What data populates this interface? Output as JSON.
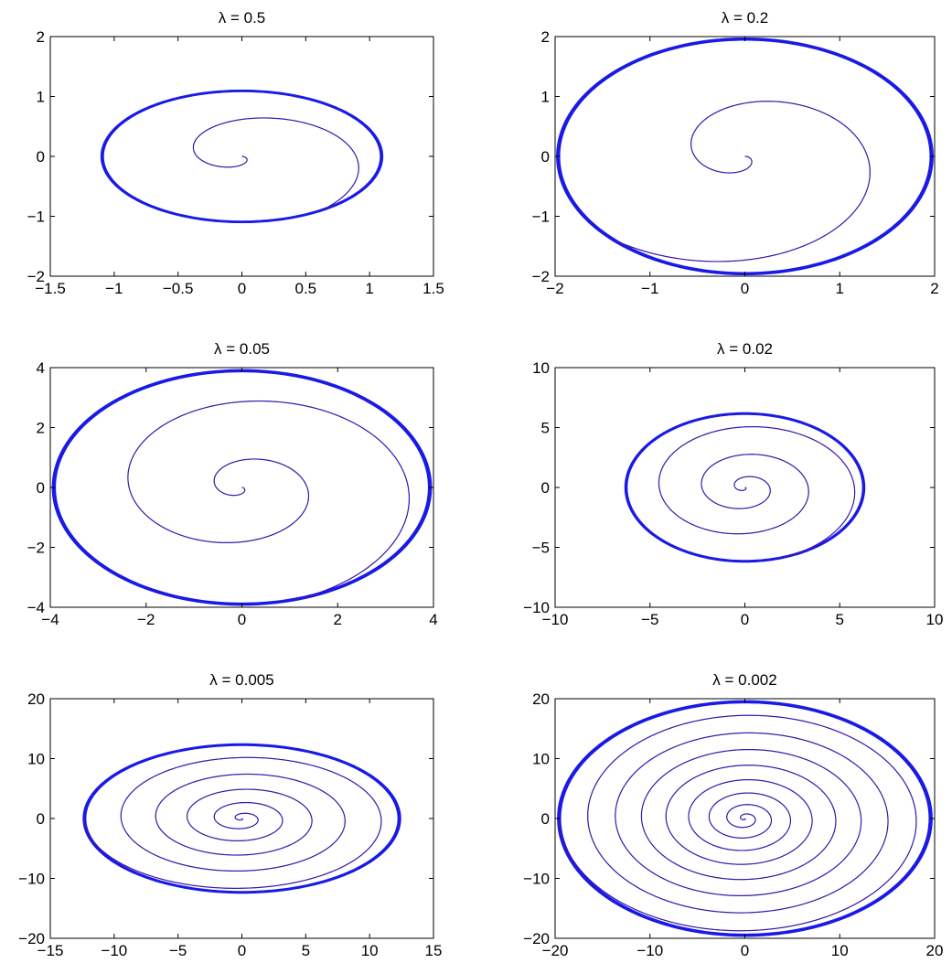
{
  "colors": {
    "spiral": "#1a1acc",
    "overlay": "#cc1a1a",
    "limit_cycle": "#1a1ae6",
    "axes": "#000000",
    "background": "#ffffff"
  },
  "chart_data": [
    {
      "type": "line",
      "title": "λ = 0.5",
      "xlim": [
        -1.5,
        1.5
      ],
      "ylim": [
        -2,
        2
      ],
      "xticks": [
        -1.5,
        -1,
        -0.5,
        0,
        0.5,
        1,
        1.5
      ],
      "yticks": [
        -2,
        -1,
        0,
        1,
        2
      ],
      "xtick_labels": [
        "−1.5",
        "−1",
        "−0.5",
        "0",
        "0.5",
        "1",
        "1.5"
      ],
      "ytick_labels": [
        "−2",
        "−1",
        "0",
        "1",
        "2"
      ],
      "grid": false,
      "series": [
        {
          "role": "trajectory",
          "spiral": {
            "a_end": 1.08,
            "b_end": 1.1,
            "turns": 1.15,
            "start_angle": 0.0
          }
        },
        {
          "role": "limit-cycle",
          "ellipse": {
            "a": 1.1,
            "b": 1.1
          }
        }
      ]
    },
    {
      "type": "line",
      "title": "λ = 0.2",
      "xlim": [
        -2,
        2
      ],
      "ylim": [
        -2,
        2
      ],
      "xticks": [
        -2,
        -1,
        0,
        1,
        2
      ],
      "yticks": [
        -2,
        -1,
        0,
        1,
        2
      ],
      "xtick_labels": [
        "−2",
        "−1",
        "0",
        "1",
        "2"
      ],
      "ytick_labels": [
        "−2",
        "−1",
        "0",
        "1",
        "2"
      ],
      "grid": false,
      "series": [
        {
          "role": "trajectory",
          "spiral": {
            "a_end": 1.95,
            "b_end": 1.95,
            "turns": 1.4,
            "start_angle": 0.2
          }
        },
        {
          "role": "limit-cycle",
          "ellipse": {
            "a": 1.98,
            "b": 1.97
          }
        }
      ]
    },
    {
      "type": "line",
      "title": "λ = 0.05",
      "xlim": [
        -4,
        4
      ],
      "ylim": [
        -4,
        4
      ],
      "xticks": [
        -4,
        -2,
        0,
        2,
        4
      ],
      "yticks": [
        -4,
        -2,
        0,
        2,
        4
      ],
      "xtick_labels": [
        "−4",
        "−2",
        "0",
        "2",
        "4"
      ],
      "ytick_labels": [
        "−4",
        "−2",
        "0",
        "2",
        "4"
      ],
      "grid": false,
      "series": [
        {
          "role": "trajectory",
          "spiral": {
            "a_end": 3.95,
            "b_end": 3.9,
            "turns": 2.2,
            "start_angle": 0.0
          }
        },
        {
          "role": "limit-cycle",
          "ellipse": {
            "a": 3.95,
            "b": 3.92
          }
        }
      ]
    },
    {
      "type": "line",
      "title": "λ = 0.02",
      "xlim": [
        -10,
        10
      ],
      "ylim": [
        -10,
        10
      ],
      "xticks": [
        -10,
        -5,
        0,
        5,
        10
      ],
      "yticks": [
        -10,
        -5,
        0,
        5,
        10
      ],
      "xtick_labels": [
        "−10",
        "−5",
        "0",
        "5",
        "10"
      ],
      "ytick_labels": [
        "−10",
        "−5",
        "0",
        "5",
        "10"
      ],
      "grid": false,
      "series": [
        {
          "role": "trajectory",
          "spiral": {
            "a_end": 6.3,
            "b_end": 6.2,
            "turns": 3.2,
            "start_angle": 0.0
          }
        },
        {
          "role": "limit-cycle",
          "ellipse": {
            "a": 6.3,
            "b": 6.2
          }
        }
      ]
    },
    {
      "type": "line",
      "title": "λ = 0.005",
      "xlim": [
        -15,
        15
      ],
      "ylim": [
        -20,
        20
      ],
      "xticks": [
        -15,
        -10,
        -5,
        0,
        5,
        10,
        15
      ],
      "yticks": [
        -20,
        -10,
        0,
        10,
        20
      ],
      "xtick_labels": [
        "−15",
        "−10",
        "−5",
        "0",
        "5",
        "10",
        "15"
      ],
      "ytick_labels": [
        "−20",
        "−10",
        "0",
        "10",
        "20"
      ],
      "grid": false,
      "series": [
        {
          "role": "trajectory",
          "spiral": {
            "a_end": 12.4,
            "b_end": 12.4,
            "turns": 5.5,
            "start_angle": 0.0
          }
        },
        {
          "role": "limit-cycle",
          "ellipse": {
            "a": 12.4,
            "b": 12.4
          }
        }
      ]
    },
    {
      "type": "line",
      "title": "λ = 0.002",
      "xlim": [
        -20,
        20
      ],
      "ylim": [
        -20,
        20
      ],
      "xticks": [
        -20,
        -10,
        0,
        10,
        20
      ],
      "yticks": [
        -20,
        -10,
        0,
        10,
        20
      ],
      "xtick_labels": [
        "−20",
        "−10",
        "0",
        "10",
        "20"
      ],
      "ytick_labels": [
        "−20",
        "−10",
        "0",
        "10",
        "20"
      ],
      "grid": false,
      "series": [
        {
          "role": "trajectory",
          "spiral": {
            "a_end": 19.6,
            "b_end": 19.5,
            "turns": 8.5,
            "start_angle": 0.0
          }
        },
        {
          "role": "limit-cycle",
          "ellipse": {
            "a": 19.7,
            "b": 19.6
          }
        }
      ]
    }
  ]
}
